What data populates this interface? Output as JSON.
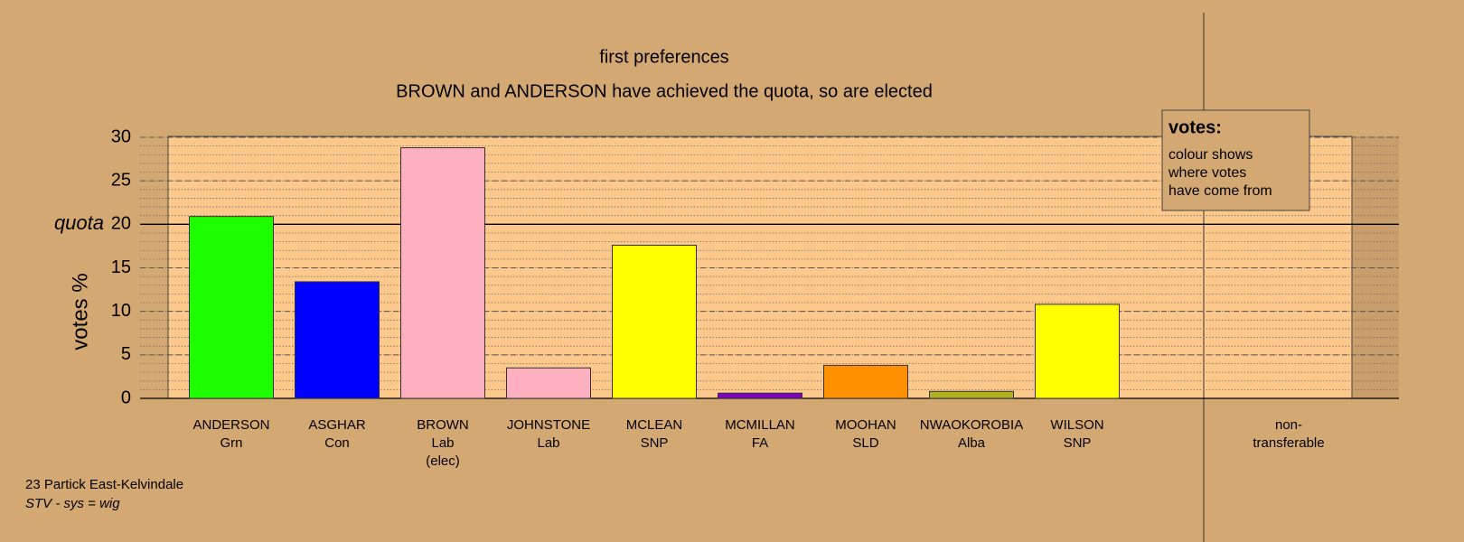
{
  "chart_data": {
    "type": "bar",
    "title": "first preferences",
    "subtitle": "BROWN and ANDERSON have achieved the quota, so are elected",
    "y_label": "votes %",
    "categories": [
      [
        "ANDERSON",
        "Grn"
      ],
      [
        "ASGHAR",
        "Con"
      ],
      [
        "BROWN",
        "Lab",
        "(elec)"
      ],
      [
        "JOHNSTONE",
        "Lab"
      ],
      [
        "MCLEAN",
        "SNP"
      ],
      [
        "MCMILLAN",
        "FA"
      ],
      [
        "MOOHAN",
        "SLD"
      ],
      [
        "NWAOKOROBIA",
        "Alba"
      ],
      [
        "WILSON",
        "SNP"
      ],
      [
        "non-",
        "transferable"
      ]
    ],
    "values": [
      20.9,
      13.4,
      28.8,
      3.5,
      17.6,
      0.6,
      3.8,
      0.8,
      10.8,
      null
    ],
    "colors": [
      "#1eff00",
      "#0000ff",
      "#ffb0c0",
      "#ffb0c0",
      "#ffff00",
      "#8000c0",
      "#ff9000",
      "#b0b020",
      "#ffff00",
      "#000000"
    ],
    "ylim": [
      0,
      30
    ],
    "yticks": [
      0,
      5,
      10,
      15,
      20,
      25,
      30
    ],
    "grid": true,
    "minor_grid": true,
    "quota": {
      "value": 20,
      "label": "quota"
    },
    "legend": {
      "title": "votes:",
      "lines": [
        "colour shows",
        "where votes",
        "have come from"
      ]
    },
    "footer": [
      "23 Partick East-Kelvindale",
      "STV - sys = wig"
    ]
  }
}
